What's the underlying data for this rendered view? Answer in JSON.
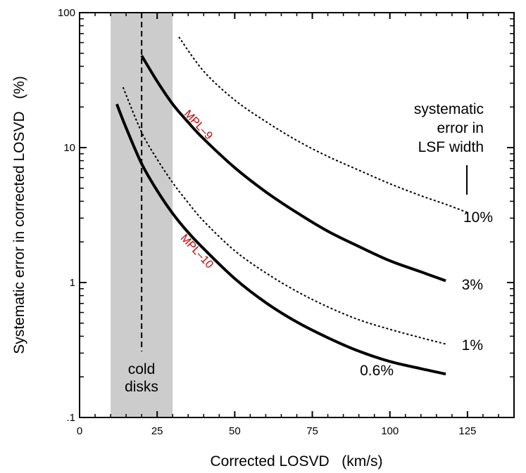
{
  "chart_data": {
    "type": "line",
    "xlabel": "Corrected LOSVD   (km/s)",
    "ylabel": "Systematic error in corrected LOSVD   (%)",
    "xlim": [
      0,
      140
    ],
    "ylim": [
      0.1,
      100
    ],
    "y_scale": "log",
    "x_ticks": [
      0,
      25,
      50,
      75,
      100,
      125
    ],
    "x_tick_labels": [
      "0",
      "25",
      "50",
      "75",
      "100",
      "125"
    ],
    "y_ticks": [
      0.1,
      1,
      10,
      100
    ],
    "y_tick_labels": [
      ".1",
      "1",
      "10",
      "100"
    ],
    "shaded_region": {
      "x0": 10,
      "x1": 30,
      "color": "#cccccc"
    },
    "reference_line": {
      "x": 20,
      "style": "dashed"
    },
    "region_label": [
      "cold",
      "disks"
    ],
    "legend_title": [
      "systematic",
      "error in",
      "LSF width"
    ],
    "series": [
      {
        "style": "dotted",
        "end_label": "10%",
        "x": [
          32,
          40,
          50,
          60,
          70,
          80,
          90,
          100,
          110,
          118,
          125
        ],
        "y": [
          66,
          36.8,
          22.5,
          15.6,
          11.3,
          8.6,
          6.8,
          5.4,
          4.4,
          3.8,
          3.3
        ]
      },
      {
        "style": "solid",
        "name": "MPL–9",
        "end_label": "3%",
        "x": [
          20,
          25,
          30,
          35,
          40,
          50,
          60,
          70,
          80,
          90,
          100,
          110,
          118
        ],
        "y": [
          48,
          31,
          21,
          15.4,
          11.6,
          7.1,
          4.7,
          3.3,
          2.4,
          1.85,
          1.45,
          1.2,
          1.03
        ]
      },
      {
        "style": "dotted",
        "end_label": "1%",
        "x": [
          14,
          20,
          25,
          30,
          35,
          40,
          50,
          60,
          70,
          80,
          90,
          100,
          110,
          118
        ],
        "y": [
          28,
          13,
          8.2,
          5.5,
          3.9,
          2.85,
          1.72,
          1.18,
          0.86,
          0.66,
          0.53,
          0.45,
          0.39,
          0.35
        ]
      },
      {
        "style": "solid",
        "name": "MPL–10",
        "end_label": "0.6%",
        "x": [
          12,
          15,
          20,
          25,
          30,
          35,
          40,
          50,
          60,
          70,
          80,
          90,
          100,
          110,
          118
        ],
        "y": [
          21,
          14,
          7.6,
          4.8,
          3.25,
          2.35,
          1.78,
          1.07,
          0.71,
          0.51,
          0.39,
          0.31,
          0.26,
          0.23,
          0.21
        ]
      }
    ]
  }
}
